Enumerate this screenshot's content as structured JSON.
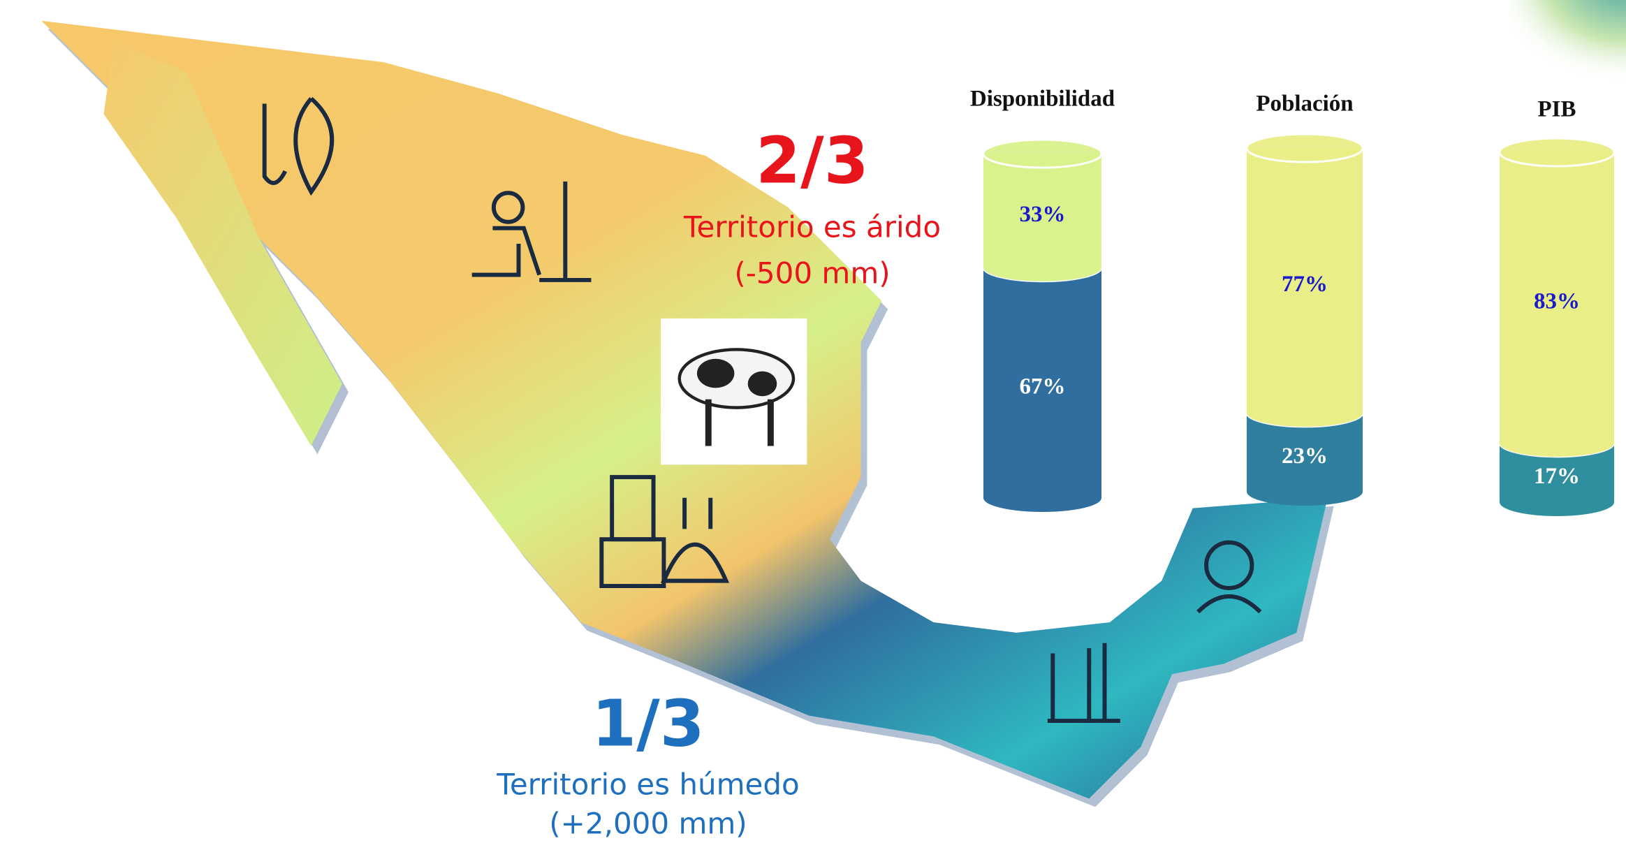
{
  "arid": {
    "fraction": "2/3",
    "label": "Territorio es árido",
    "note": "(-500 mm)"
  },
  "humid": {
    "fraction": "1/3",
    "label": "Territorio es húmedo",
    "note": "(+2,000 mm)"
  },
  "chart_data": [
    {
      "type": "stacked-cylinder",
      "title": "Disponibilidad",
      "ylim": [
        0,
        100
      ],
      "series": [
        {
          "color": "#2f6e9e",
          "label_color": "#ffffff",
          "values": [
            67
          ],
          "value_labels": [
            "67%"
          ]
        },
        {
          "color": "#d9f28c",
          "label_color": "#1a1acc",
          "values": [
            33
          ],
          "value_labels": [
            "33%"
          ]
        }
      ]
    },
    {
      "type": "stacked-cylinder",
      "title": "Población",
      "ylim": [
        0,
        100
      ],
      "series": [
        {
          "color": "#2f7f9e",
          "label_color": "#ffffff",
          "values": [
            23
          ],
          "value_labels": [
            "23%"
          ]
        },
        {
          "color": "#e9ee86",
          "label_color": "#1a1acc",
          "values": [
            77
          ],
          "value_labels": [
            "77%"
          ]
        }
      ]
    },
    {
      "type": "stacked-cylinder",
      "title": "PIB",
      "ylim": [
        0,
        100
      ],
      "series": [
        {
          "color": "#2f8f9e",
          "label_color": "#ffffff",
          "values": [
            17
          ],
          "value_labels": [
            "17%"
          ]
        },
        {
          "color": "#eaee86",
          "label_color": "#1a1acc",
          "values": [
            83
          ],
          "value_labels": [
            "83%"
          ]
        }
      ]
    }
  ]
}
